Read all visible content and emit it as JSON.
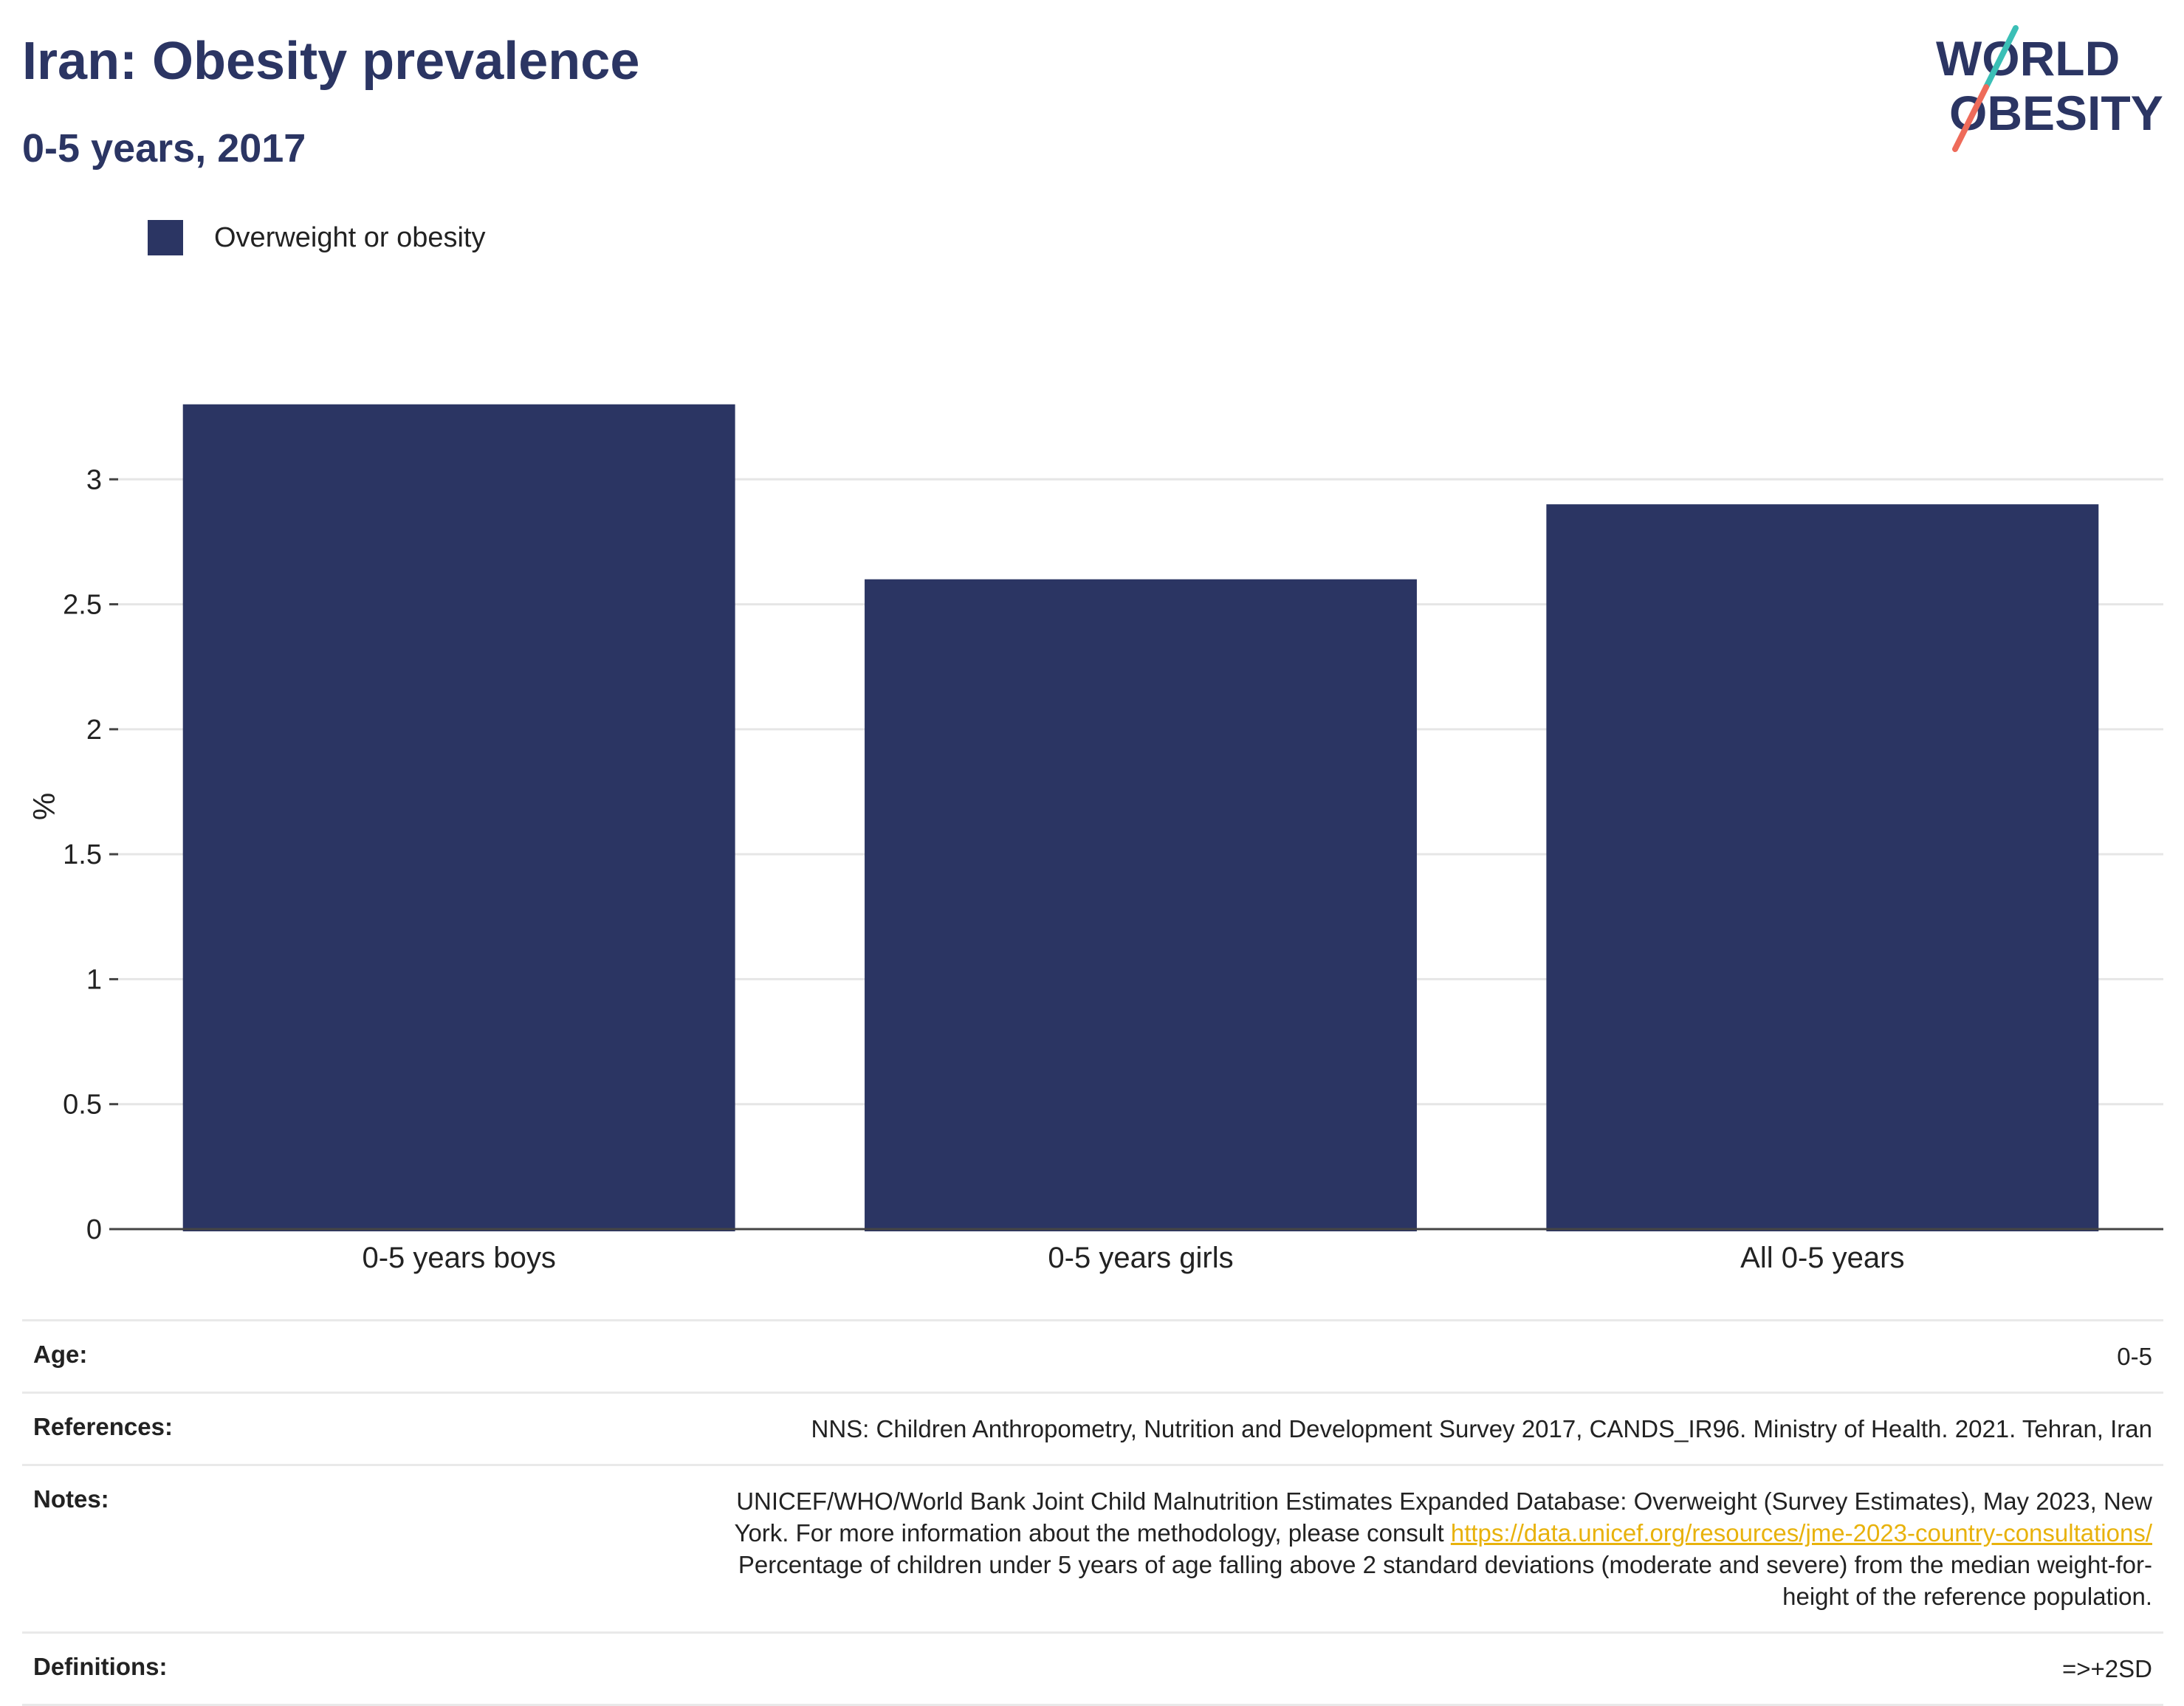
{
  "header": {
    "title": "Iran: Obesity prevalence",
    "subtitle": "0-5 years, 2017"
  },
  "logo": {
    "line1": "WORLD",
    "line2": "OBESITY"
  },
  "legend": {
    "label": "Overweight or obesity"
  },
  "colors": {
    "bar": "#2b3563",
    "title": "#2b3563",
    "link": "#e8b20c",
    "logo_teal": "#3bbfb6",
    "logo_coral": "#ee6b5a"
  },
  "chart_data": {
    "type": "bar",
    "title": "Iran: Obesity prevalence",
    "subtitle": "0-5 years, 2017",
    "categories": [
      "0-5 years boys",
      "0-5 years girls",
      "All 0-5 years"
    ],
    "series": [
      {
        "name": "Overweight or obesity",
        "values": [
          3.3,
          2.6,
          2.9
        ]
      }
    ],
    "xlabel": "",
    "ylabel": "%",
    "ylim": [
      0,
      3.5
    ],
    "yticks": [
      "0",
      "0.5",
      "1",
      "1.5",
      "2",
      "2.5",
      "3"
    ],
    "grid": true,
    "legend_position": "top-left"
  },
  "meta": {
    "age_label": "Age:",
    "age_value": "0-5",
    "references_label": "References:",
    "references_value": "NNS: Children Anthropometry, Nutrition and Development Survey 2017, CANDS_IR96. Ministry of Health. 2021. Tehran, Iran",
    "notes_label": "Notes:",
    "notes_line1": "UNICEF/WHO/World Bank Joint Child Malnutrition Estimates Expanded Database: Overweight (Survey Estimates), May 2023, New",
    "notes_line2_prefix": "York. For more information about the methodology, please consult ",
    "notes_link": "https://data.unicef.org/resources/jme-2023-country-consultations/",
    "notes_line3": "Percentage of children under 5 years of age falling above 2 standard deviations (moderate and severe) from the median weight-for-",
    "notes_line4": "height of the reference population.",
    "definitions_label": "Definitions:",
    "definitions_value": "=>+2SD"
  }
}
